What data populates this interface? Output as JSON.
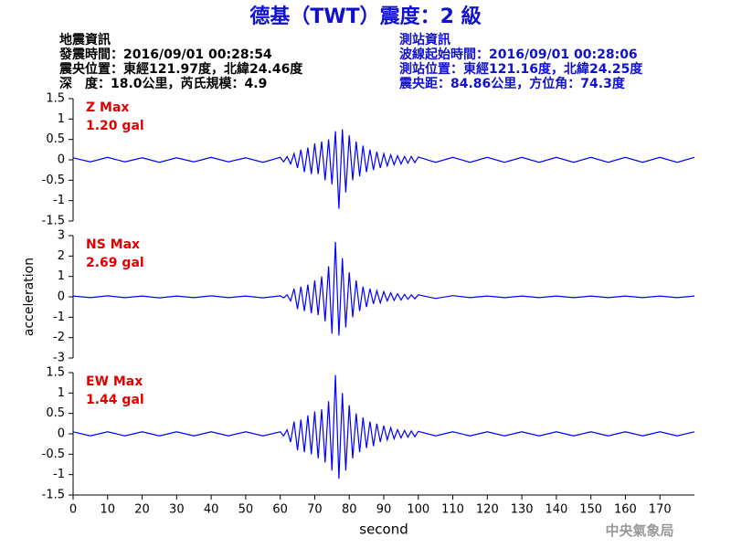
{
  "header": {
    "title": "德基（TWT）震度：2 級",
    "left": [
      "地震資訊",
      "發震時間：2016/09/01 00:28:54",
      "震央位置：東經121.97度，北緯24.46度",
      "深　度：18.0公里，芮氏規模：4.9"
    ],
    "right": [
      "測站資訊",
      "波線起始時間：2016/09/01 00:28:06",
      "測站位置：東經121.16度，北緯24.25度",
      "震央距：84.86公里，方位角：74.3度"
    ],
    "watermark": "中央氣象局"
  },
  "chart_data": [
    {
      "type": "line",
      "annotations": [
        "Z Max",
        "1.20 gal"
      ],
      "color": "#0000ff",
      "xlim": [
        0,
        180
      ],
      "ylim": [
        -1.5,
        1.5
      ],
      "yticks": [
        1.5,
        1,
        0.5,
        0,
        -0.5,
        -1,
        -1.5
      ],
      "x": [
        0,
        5,
        10,
        15,
        20,
        25,
        30,
        35,
        40,
        45,
        50,
        55,
        60,
        61,
        62,
        63,
        64,
        65,
        66,
        67,
        68,
        69,
        70,
        71,
        72,
        73,
        74,
        75,
        76,
        77,
        78,
        79,
        80,
        81,
        82,
        83,
        84,
        85,
        86,
        87,
        88,
        89,
        90,
        91,
        92,
        93,
        94,
        95,
        96,
        97,
        98,
        99,
        100,
        105,
        110,
        115,
        120,
        125,
        130,
        135,
        140,
        145,
        150,
        155,
        160,
        165,
        170,
        175,
        180
      ],
      "values": [
        0.05,
        -0.05,
        0.06,
        -0.05,
        0.05,
        -0.06,
        0.05,
        -0.05,
        0.06,
        -0.05,
        0.05,
        -0.06,
        0.06,
        -0.05,
        0.08,
        -0.1,
        0.15,
        -0.2,
        0.25,
        -0.3,
        0.3,
        -0.35,
        0.4,
        -0.35,
        0.45,
        -0.5,
        0.5,
        -0.6,
        0.7,
        -1.2,
        0.75,
        -0.8,
        0.6,
        -0.5,
        0.45,
        -0.4,
        0.35,
        -0.3,
        0.25,
        -0.25,
        0.2,
        -0.2,
        0.15,
        -0.15,
        0.12,
        -0.12,
        0.1,
        -0.1,
        0.08,
        -0.08,
        0.08,
        -0.07,
        0.07,
        -0.06,
        0.06,
        -0.06,
        0.06,
        -0.06,
        0.06,
        -0.06,
        0.06,
        -0.06,
        0.06,
        -0.06,
        0.06,
        -0.06,
        0.06,
        -0.06,
        0.06
      ]
    },
    {
      "type": "line",
      "annotations": [
        "NS Max",
        "2.69 gal"
      ],
      "color": "#0000ff",
      "ylabel": "acceleration",
      "xlim": [
        0,
        180
      ],
      "ylim": [
        -3,
        3
      ],
      "yticks": [
        3,
        2,
        1,
        0,
        -1,
        -2,
        -3
      ],
      "x": [
        0,
        5,
        10,
        15,
        20,
        25,
        30,
        35,
        40,
        45,
        50,
        55,
        60,
        61,
        62,
        63,
        64,
        65,
        66,
        67,
        68,
        69,
        70,
        71,
        72,
        73,
        74,
        75,
        76,
        77,
        78,
        79,
        80,
        81,
        82,
        83,
        84,
        85,
        86,
        87,
        88,
        89,
        90,
        91,
        92,
        93,
        94,
        95,
        96,
        97,
        98,
        99,
        100,
        105,
        110,
        115,
        120,
        125,
        130,
        135,
        140,
        145,
        150,
        155,
        160,
        165,
        170,
        175,
        180
      ],
      "values": [
        0.04,
        -0.04,
        0.05,
        -0.04,
        0.04,
        -0.05,
        0.04,
        -0.04,
        0.05,
        -0.04,
        0.04,
        -0.05,
        0.05,
        -0.05,
        0.1,
        -0.2,
        0.4,
        -0.6,
        0.5,
        -0.7,
        0.6,
        -0.8,
        0.8,
        -0.9,
        1.0,
        -1.2,
        1.5,
        -1.8,
        2.69,
        -1.9,
        1.9,
        -1.5,
        1.2,
        -1.0,
        0.8,
        -0.7,
        0.5,
        -0.5,
        0.4,
        -0.35,
        0.3,
        -0.3,
        0.25,
        -0.2,
        0.2,
        -0.18,
        0.15,
        -0.15,
        0.12,
        -0.12,
        0.1,
        -0.1,
        0.1,
        -0.08,
        0.06,
        -0.04,
        0.04,
        -0.04,
        0.04,
        -0.04,
        0.04,
        -0.04,
        0.04,
        -0.04,
        0.04,
        -0.04,
        0.04,
        -0.04,
        0.04
      ]
    },
    {
      "type": "line",
      "annotations": [
        "EW Max",
        "1.44 gal"
      ],
      "color": "#0000ff",
      "xlabel": "second",
      "xlim": [
        0,
        180
      ],
      "ylim": [
        -1.5,
        1.5
      ],
      "yticks": [
        1.5,
        1,
        0.5,
        0,
        -0.5,
        -1,
        -1.5
      ],
      "xticks": [
        0,
        10,
        20,
        30,
        40,
        50,
        60,
        70,
        80,
        90,
        100,
        110,
        120,
        130,
        140,
        150,
        160,
        170
      ],
      "x": [
        0,
        5,
        10,
        15,
        20,
        25,
        30,
        35,
        40,
        45,
        50,
        55,
        60,
        61,
        62,
        63,
        64,
        65,
        66,
        67,
        68,
        69,
        70,
        71,
        72,
        73,
        74,
        75,
        76,
        77,
        78,
        79,
        80,
        81,
        82,
        83,
        84,
        85,
        86,
        87,
        88,
        89,
        90,
        91,
        92,
        93,
        94,
        95,
        96,
        97,
        98,
        99,
        100,
        105,
        110,
        115,
        120,
        125,
        130,
        135,
        140,
        145,
        150,
        155,
        160,
        165,
        170,
        175,
        180
      ],
      "values": [
        0.05,
        -0.05,
        0.05,
        -0.05,
        0.05,
        -0.05,
        0.05,
        -0.05,
        0.05,
        -0.05,
        0.05,
        -0.05,
        0.05,
        -0.05,
        0.1,
        -0.2,
        0.3,
        -0.4,
        0.35,
        -0.45,
        0.45,
        -0.5,
        0.55,
        -0.6,
        0.6,
        -0.7,
        0.8,
        -0.9,
        1.44,
        -1.1,
        1.0,
        -0.9,
        0.7,
        -0.6,
        0.5,
        -0.45,
        0.4,
        -0.35,
        0.3,
        -0.3,
        0.25,
        -0.2,
        0.2,
        -0.15,
        0.15,
        -0.12,
        0.1,
        -0.1,
        0.08,
        -0.08,
        0.07,
        -0.07,
        0.06,
        -0.05,
        0.05,
        -0.05,
        0.05,
        -0.05,
        0.05,
        -0.05,
        0.05,
        -0.05,
        0.05,
        -0.05,
        0.05,
        -0.05,
        0.05,
        -0.05,
        0.05
      ]
    }
  ]
}
